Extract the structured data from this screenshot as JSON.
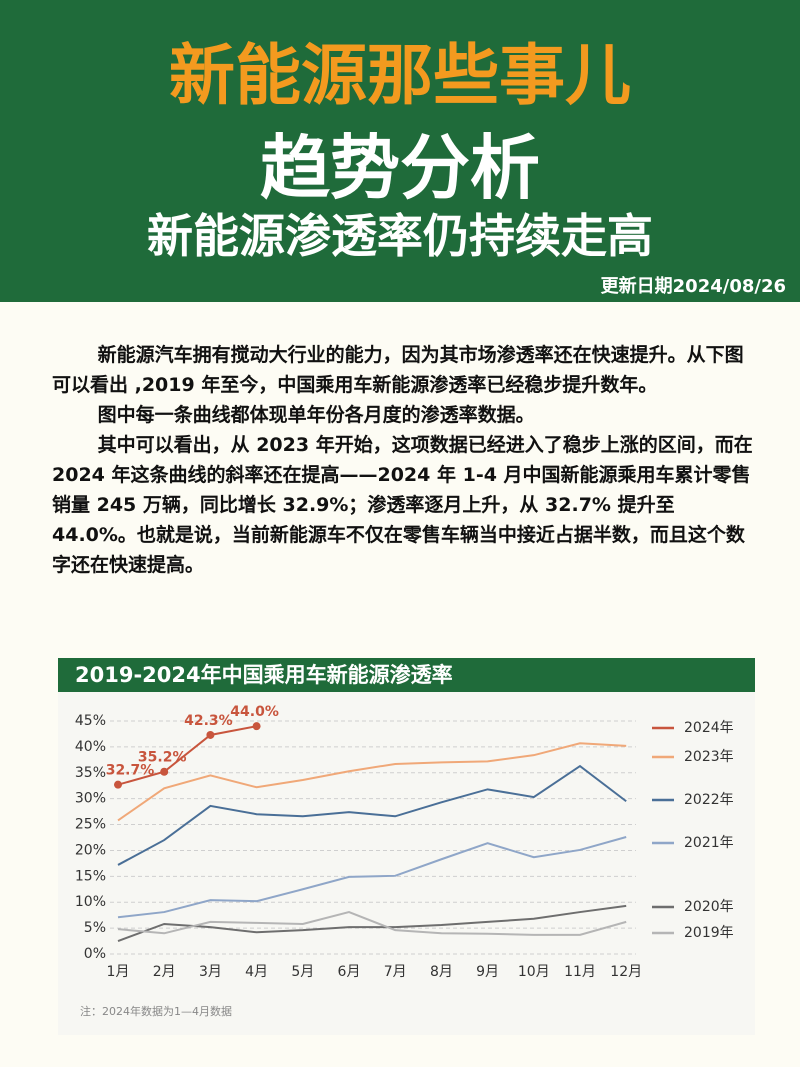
{
  "header": {
    "title": "新能源那些事儿",
    "subtitle": "趋势分析",
    "headline": "新能源渗透率仍持续走高",
    "date": "更新日期2024/08/26"
  },
  "paragraphs": [
    "新能源汽车拥有搅动大行业的能力，因为其市场渗透率还在快速提升。从下图可以看出 ,2019 年至今，中国乘用车新能源渗透率已经稳步提升数年。",
    "图中每一条曲线都体现单年份各月度的渗透率数据。",
    "其中可以看出，从 2023 年开始，这项数据已经进入了稳步上涨的区间，而在 2024 年这条曲线的斜率还在提高——2024 年 1-4 月中国新能源乘用车累计零售销量 245 万辆，同比增长 32.9%；渗透率逐月上升，从 32.7% 提升至 44.0%。也就是说，当前新能源车不仅在零售车辆当中接近占据半数，而且这个数字还在快速提高。"
  ],
  "chart_data": {
    "type": "line",
    "title": "2019-2024年中国乘用车新能源渗透率",
    "categories": [
      "1月",
      "2月",
      "3月",
      "4月",
      "5月",
      "6月",
      "7月",
      "8月",
      "9月",
      "10月",
      "11月",
      "12月"
    ],
    "ylim": [
      0,
      45
    ],
    "yticks": [
      {
        "value": 0,
        "label": "0%"
      },
      {
        "value": 5,
        "label": "5%"
      },
      {
        "value": 10,
        "label": "10%"
      },
      {
        "value": 15,
        "label": "15%"
      },
      {
        "value": 20,
        "label": "20%"
      },
      {
        "value": 25,
        "label": "25%"
      },
      {
        "value": 30,
        "label": "30%"
      },
      {
        "value": 35,
        "label": "35%"
      },
      {
        "value": 40,
        "label": "40%"
      },
      {
        "value": 45,
        "label": "45%"
      }
    ],
    "grid": true,
    "series": [
      {
        "name": "2024年",
        "color": "#c8553d",
        "values": [
          32.7,
          35.2,
          42.3,
          44.0,
          null,
          null,
          null,
          null,
          null,
          null,
          null,
          null
        ],
        "value_labels": [
          "32.7%",
          "35.2%",
          "42.3%",
          "44.0%",
          null,
          null,
          null,
          null,
          null,
          null,
          null,
          null
        ]
      },
      {
        "name": "2023年",
        "color": "#f0a878",
        "values": [
          25.8,
          32.0,
          34.5,
          32.2,
          33.6,
          35.3,
          36.7,
          37.0,
          37.2,
          38.4,
          40.7,
          40.2
        ]
      },
      {
        "name": "2022年",
        "color": "#4a6f97",
        "values": [
          17.2,
          22.0,
          28.6,
          27.0,
          26.6,
          27.4,
          26.6,
          29.3,
          31.8,
          30.3,
          36.3,
          29.5
        ]
      },
      {
        "name": "2021年",
        "color": "#8fa6c8",
        "values": [
          7.1,
          8.1,
          10.4,
          10.2,
          12.5,
          14.9,
          15.1,
          18.3,
          21.4,
          18.7,
          20.1,
          22.6
        ]
      },
      {
        "name": "2020年",
        "color": "#6e6e6e",
        "values": [
          2.5,
          5.8,
          5.2,
          4.2,
          4.6,
          5.2,
          5.2,
          5.6,
          6.2,
          6.8,
          8.1,
          9.3
        ]
      },
      {
        "name": "2019年",
        "color": "#b5b5b5",
        "values": [
          4.8,
          4.0,
          6.2,
          6.0,
          5.8,
          8.1,
          4.6,
          4.0,
          3.9,
          3.7,
          3.7,
          6.2
        ]
      }
    ],
    "note": "注：2024年数据为1—4月数据"
  }
}
